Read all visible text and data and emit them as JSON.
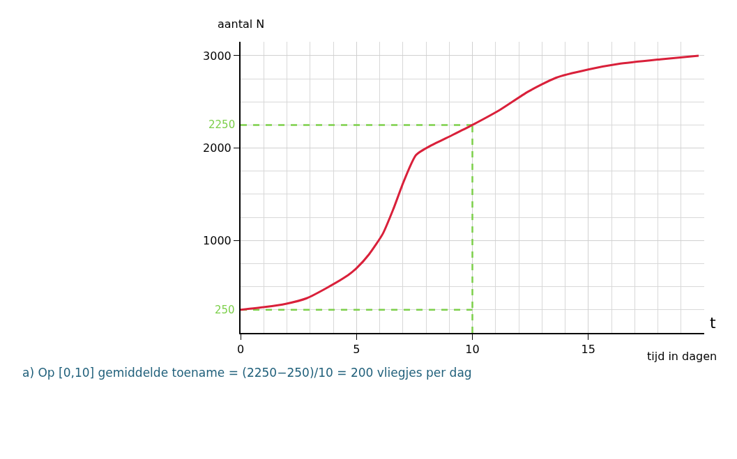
{
  "chart_data": {
    "type": "line",
    "xlabel": "t",
    "ylabel": "aantal N",
    "annotations": [
      "tijd in dagen",
      "a) Op [0,10] gemiddelde toename = (2250−250)/10 = 200 vliegjes per dag"
    ],
    "x": [
      0,
      1.05,
      1.95,
      2.85,
      3.74,
      4.64,
      5,
      5.54,
      6.14,
      6.59,
      7.04,
      7.57,
      8.23,
      9.13,
      10,
      11.2,
      12.4,
      13.6,
      15,
      16.3,
      18.1,
      19.76
    ],
    "series": [
      {
        "color": "#d9203a",
        "values": [
          250,
          280,
          315,
          375,
          490,
          625,
          700,
          850,
          1075,
          1340,
          1640,
          1925,
          2030,
          2140,
          2250,
          2415,
          2610,
          2760,
          2850,
          2910,
          2960,
          3000
        ]
      }
    ],
    "xlim": [
      0,
      20
    ],
    "ylim": [
      0,
      3150
    ],
    "xticks": [
      0,
      5,
      10,
      15
    ],
    "yticks": [
      1000,
      2000,
      3000
    ],
    "ref_lines": [
      {
        "axis": "y",
        "value": 2250,
        "label": "2250",
        "color": "#7ccf4a",
        "line_style": "dashed"
      },
      {
        "axis": "y",
        "value": 250,
        "label": "250",
        "color": "#7ccf4a",
        "line_style": "dashed"
      },
      {
        "axis": "x",
        "value": 10,
        "label": null,
        "color": "#7ccf4a",
        "line_style": "dashed"
      }
    ],
    "grid": true,
    "marker": "none",
    "line_style": "solid"
  }
}
